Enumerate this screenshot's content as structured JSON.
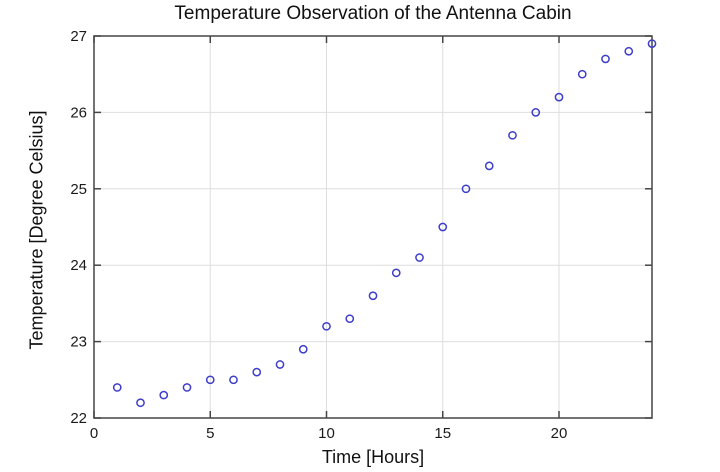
{
  "chart_data": {
    "type": "scatter",
    "title": "Temperature Observation of the Antenna Cabin",
    "xlabel": "Time [Hours]",
    "ylabel": "Temperature [Degree Celsius]",
    "x": [
      1,
      2,
      3,
      4,
      5,
      6,
      7,
      8,
      9,
      10,
      11,
      12,
      13,
      14,
      15,
      16,
      17,
      18,
      19,
      20,
      21,
      22,
      23,
      24
    ],
    "y": [
      22.4,
      22.2,
      22.3,
      22.4,
      22.5,
      22.5,
      22.6,
      22.7,
      22.9,
      23.2,
      23.3,
      23.6,
      23.9,
      24.1,
      24.5,
      25.0,
      25.3,
      25.7,
      26.0,
      26.2,
      26.5,
      26.7,
      26.8,
      26.9
    ],
    "xlim": [
      0,
      24
    ],
    "ylim": [
      22,
      27
    ],
    "xticks": [
      0,
      5,
      10,
      15,
      20
    ],
    "yticks": [
      22,
      23,
      24,
      25,
      26,
      27
    ],
    "grid": true,
    "legend_position": "none",
    "marker": {
      "shape": "open-circle",
      "color": "#3d3dcb"
    },
    "colors": {
      "background": "#ffffff",
      "axis": "#454545",
      "grid": "#dedede",
      "text": "#1a1a1a"
    }
  }
}
